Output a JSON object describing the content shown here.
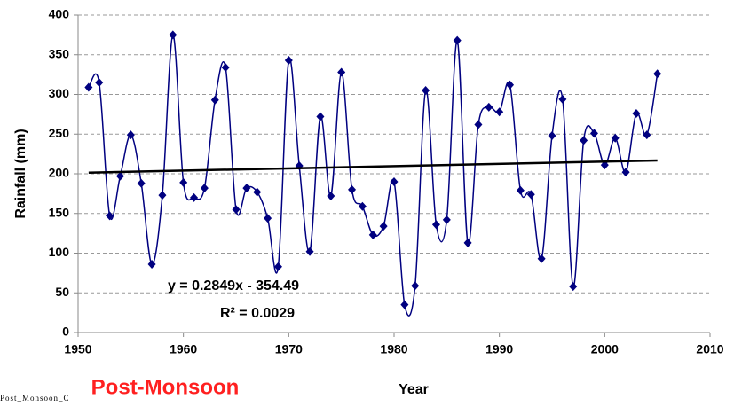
{
  "chart_data": {
    "type": "line",
    "x_label": "Year",
    "y_label": "Rainfall (mm)",
    "x": [
      1951,
      1952,
      1953,
      1954,
      1955,
      1956,
      1957,
      1958,
      1959,
      1960,
      1961,
      1962,
      1963,
      1964,
      1965,
      1966,
      1967,
      1968,
      1969,
      1970,
      1971,
      1972,
      1973,
      1974,
      1975,
      1976,
      1977,
      1978,
      1979,
      1980,
      1981,
      1982,
      1983,
      1984,
      1985,
      1986,
      1987,
      1988,
      1989,
      1990,
      1991,
      1992,
      1993,
      1994,
      1995,
      1996,
      1997,
      1998,
      1999,
      2000,
      2001,
      2002,
      2003,
      2004,
      2005
    ],
    "series": [
      {
        "color": "#000080",
        "values": [
          309,
          315,
          147,
          197,
          249,
          188,
          86,
          173,
          375,
          189,
          170,
          182,
          293,
          334,
          155,
          182,
          177,
          144,
          83,
          343,
          210,
          102,
          272,
          172,
          328,
          180,
          159,
          123,
          134,
          190,
          35,
          59,
          305,
          136,
          142,
          368,
          113,
          262,
          284,
          278,
          312,
          179,
          174,
          93,
          248,
          294,
          58,
          242,
          251,
          211,
          245,
          202,
          276,
          249,
          326
        ]
      }
    ],
    "trendline": {
      "color": "#000000",
      "x": [
        1951,
        2005
      ],
      "values": [
        201.4,
        216.7
      ]
    },
    "annotations": [
      "y = 0.2849x - 354.49",
      "R² = 0.0029"
    ],
    "label": "Post-Monsoon",
    "caption": "Post_Monsoon_C",
    "xlim": [
      1950,
      2010
    ],
    "xticks": [
      1950,
      1960,
      1970,
      1980,
      1990,
      2000,
      2010
    ],
    "ylim": [
      0,
      400
    ],
    "yticks": [
      0,
      50,
      100,
      150,
      200,
      250,
      300,
      350,
      400
    ],
    "grid": true
  }
}
